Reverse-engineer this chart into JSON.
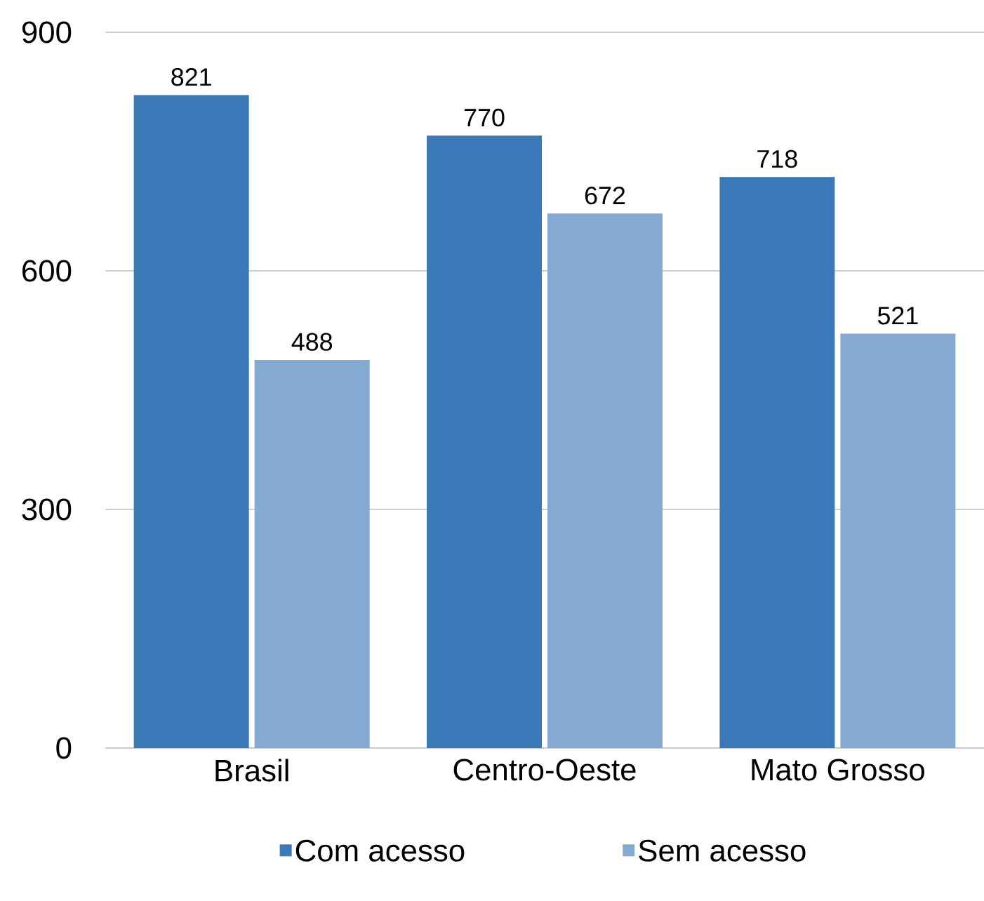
{
  "chart_data": {
    "type": "bar",
    "categories": [
      "Brasil",
      "Centro-Oeste",
      "Mato Grosso"
    ],
    "series": [
      {
        "name": "Com acesso",
        "color": "#3a78b8",
        "values": [
          821,
          770,
          718
        ]
      },
      {
        "name": "Sem acesso",
        "color": "#84aad2",
        "values": [
          488,
          672,
          521
        ]
      }
    ],
    "ylim": [
      0,
      900
    ],
    "yticks": [
      0,
      300,
      600,
      900
    ],
    "grid": "y",
    "legend": "bottom",
    "data_labels": true
  }
}
